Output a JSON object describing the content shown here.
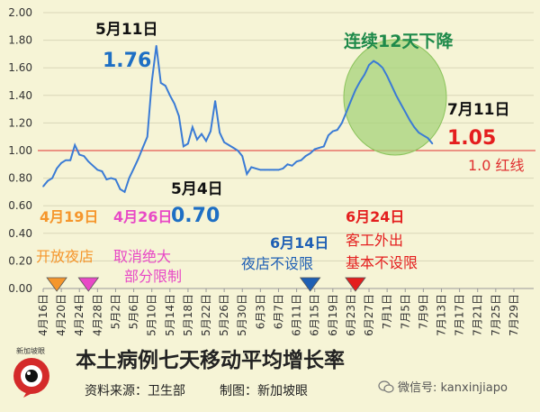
{
  "chart_data": {
    "type": "line",
    "title": "本土病例七天移动平均增长率",
    "ylim": [
      0,
      2.0
    ],
    "yticks": [
      "0.00",
      "0.20",
      "0.40",
      "0.60",
      "0.80",
      "1.00",
      "1.20",
      "1.40",
      "1.60",
      "1.80",
      "2.00"
    ],
    "ytick_values": [
      0,
      0.2,
      0.4,
      0.6,
      0.8,
      1.0,
      1.2,
      1.4,
      1.6,
      1.8,
      2.0
    ],
    "x_start": "2021-04-16",
    "x_end": "2021-07-31",
    "xticks": [
      {
        "date": "2021-04-16",
        "label": "4月16日"
      },
      {
        "date": "2021-04-20",
        "label": "4月20日"
      },
      {
        "date": "2021-04-24",
        "label": "4月24日"
      },
      {
        "date": "2021-04-28",
        "label": "4月28日"
      },
      {
        "date": "2021-05-02",
        "label": "5月2日"
      },
      {
        "date": "2021-05-06",
        "label": "5月6日"
      },
      {
        "date": "2021-05-10",
        "label": "5月10日"
      },
      {
        "date": "2021-05-14",
        "label": "5月14日"
      },
      {
        "date": "2021-05-18",
        "label": "5月18日"
      },
      {
        "date": "2021-05-22",
        "label": "5月22日"
      },
      {
        "date": "2021-05-26",
        "label": "5月26日"
      },
      {
        "date": "2021-05-30",
        "label": "5月30日"
      },
      {
        "date": "2021-06-03",
        "label": "6月3日"
      },
      {
        "date": "2021-06-07",
        "label": "6月7日"
      },
      {
        "date": "2021-06-11",
        "label": "6月11日"
      },
      {
        "date": "2021-06-15",
        "label": "6月15日"
      },
      {
        "date": "2021-06-19",
        "label": "6月19日"
      },
      {
        "date": "2021-06-23",
        "label": "6月23日"
      },
      {
        "date": "2021-06-27",
        "label": "6月27日"
      },
      {
        "date": "2021-07-01",
        "label": "7月1日"
      },
      {
        "date": "2021-07-05",
        "label": "7月5日"
      },
      {
        "date": "2021-07-09",
        "label": "7月9日"
      },
      {
        "date": "2021-07-13",
        "label": "7月13日"
      },
      {
        "date": "2021-07-17",
        "label": "7月17日"
      },
      {
        "date": "2021-07-21",
        "label": "7月21日"
      },
      {
        "date": "2021-07-25",
        "label": "7月25日"
      },
      {
        "date": "2021-07-29",
        "label": "7月29日"
      }
    ],
    "series": [
      {
        "color": "#3a7bd5",
        "points": [
          [
            "2021-04-16",
            0.74
          ],
          [
            "2021-04-17",
            0.78
          ],
          [
            "2021-04-18",
            0.8
          ],
          [
            "2021-04-19",
            0.87
          ],
          [
            "2021-04-20",
            0.91
          ],
          [
            "2021-04-21",
            0.93
          ],
          [
            "2021-04-22",
            0.93
          ],
          [
            "2021-04-23",
            1.04
          ],
          [
            "2021-04-24",
            0.97
          ],
          [
            "2021-04-25",
            0.96
          ],
          [
            "2021-04-26",
            0.92
          ],
          [
            "2021-04-27",
            0.89
          ],
          [
            "2021-04-28",
            0.86
          ],
          [
            "2021-04-29",
            0.85
          ],
          [
            "2021-04-30",
            0.79
          ],
          [
            "2021-05-01",
            0.8
          ],
          [
            "2021-05-02",
            0.79
          ],
          [
            "2021-05-03",
            0.72
          ],
          [
            "2021-05-04",
            0.7
          ],
          [
            "2021-05-05",
            0.8
          ],
          [
            "2021-05-06",
            0.87
          ],
          [
            "2021-05-07",
            0.94
          ],
          [
            "2021-05-08",
            1.02
          ],
          [
            "2021-05-09",
            1.1
          ],
          [
            "2021-05-10",
            1.5
          ],
          [
            "2021-05-11",
            1.76
          ],
          [
            "2021-05-12",
            1.49
          ],
          [
            "2021-05-13",
            1.47
          ],
          [
            "2021-05-14",
            1.4
          ],
          [
            "2021-05-15",
            1.34
          ],
          [
            "2021-05-16",
            1.25
          ],
          [
            "2021-05-17",
            1.03
          ],
          [
            "2021-05-18",
            1.05
          ],
          [
            "2021-05-19",
            1.17
          ],
          [
            "2021-05-20",
            1.08
          ],
          [
            "2021-05-21",
            1.12
          ],
          [
            "2021-05-22",
            1.07
          ],
          [
            "2021-05-23",
            1.14
          ],
          [
            "2021-05-24",
            1.36
          ],
          [
            "2021-05-25",
            1.13
          ],
          [
            "2021-05-26",
            1.06
          ],
          [
            "2021-05-27",
            1.04
          ],
          [
            "2021-05-28",
            1.02
          ],
          [
            "2021-05-29",
            1.0
          ],
          [
            "2021-05-30",
            0.96
          ],
          [
            "2021-05-31",
            0.83
          ],
          [
            "2021-06-01",
            0.88
          ],
          [
            "2021-06-02",
            0.87
          ],
          [
            "2021-06-03",
            0.86
          ],
          [
            "2021-06-04",
            0.86
          ],
          [
            "2021-06-05",
            0.86
          ],
          [
            "2021-06-06",
            0.86
          ],
          [
            "2021-06-07",
            0.86
          ],
          [
            "2021-06-08",
            0.87
          ],
          [
            "2021-06-09",
            0.9
          ],
          [
            "2021-06-10",
            0.89
          ],
          [
            "2021-06-11",
            0.92
          ],
          [
            "2021-06-12",
            0.93
          ],
          [
            "2021-06-13",
            0.96
          ],
          [
            "2021-06-14",
            0.98
          ],
          [
            "2021-06-15",
            1.01
          ],
          [
            "2021-06-16",
            1.02
          ],
          [
            "2021-06-17",
            1.03
          ],
          [
            "2021-06-18",
            1.11
          ],
          [
            "2021-06-19",
            1.14
          ],
          [
            "2021-06-20",
            1.15
          ],
          [
            "2021-06-21",
            1.2
          ],
          [
            "2021-06-22",
            1.28
          ],
          [
            "2021-06-23",
            1.36
          ],
          [
            "2021-06-24",
            1.44
          ],
          [
            "2021-06-25",
            1.5
          ],
          [
            "2021-06-26",
            1.55
          ],
          [
            "2021-06-27",
            1.62
          ],
          [
            "2021-06-28",
            1.65
          ],
          [
            "2021-06-29",
            1.63
          ],
          [
            "2021-06-30",
            1.6
          ],
          [
            "2021-07-01",
            1.54
          ],
          [
            "2021-07-02",
            1.47
          ],
          [
            "2021-07-03",
            1.4
          ],
          [
            "2021-07-04",
            1.34
          ],
          [
            "2021-07-05",
            1.28
          ],
          [
            "2021-07-06",
            1.22
          ],
          [
            "2021-07-07",
            1.17
          ],
          [
            "2021-07-08",
            1.13
          ],
          [
            "2021-07-09",
            1.11
          ],
          [
            "2021-07-10",
            1.09
          ],
          [
            "2021-07-11",
            1.05
          ]
        ]
      }
    ],
    "reference_line": {
      "value": 1.0,
      "label": "1.0 红线",
      "color": "#e03030"
    },
    "annotations": [
      {
        "date_label": "5月11日",
        "value_label": "1.76"
      },
      {
        "date_label": "5月4日",
        "value_label": "0.70"
      },
      {
        "date_label": "7月11日",
        "value_label": "1.05"
      },
      {
        "text": "连续12天下降"
      }
    ],
    "events": [
      {
        "date": "2021-04-19",
        "title": "4月19日",
        "lines": [
          "开放夜店"
        ],
        "color": "#f5962c"
      },
      {
        "date": "2021-04-26",
        "title": "4月26日",
        "lines": [
          "取消绝大",
          "部分限制"
        ],
        "color": "#e849c6"
      },
      {
        "date": "2021-06-14",
        "title": "6月14日",
        "lines": [
          "夜店不设限"
        ],
        "color": "#1e5fb4"
      },
      {
        "date": "2021-06-24",
        "title": "6月24日",
        "lines": [
          "客工外出",
          "基本不设限"
        ],
        "color": "#e41e1e"
      }
    ]
  },
  "footer": {
    "title": "本土病例七天移动平均增长率",
    "source": "资料来源：卫生部",
    "credit": "制图：新加坡眼",
    "wechat": "微信号: kanxinjiapo",
    "logo_text": "新加坡眼"
  }
}
